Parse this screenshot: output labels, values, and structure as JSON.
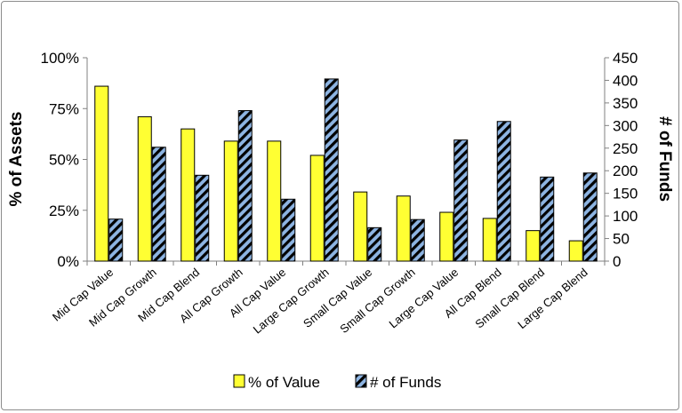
{
  "chart_data": {
    "type": "bar",
    "categories": [
      "Mid Cap Value",
      "Mid Cap Growth",
      "Mid Cap Blend",
      "All Cap Growth",
      "All Cap Value",
      "Large Cap Growth",
      "Small Cap Value",
      "Small Cap Growth",
      "Large Cap Value",
      "All Cap Blend",
      "Small Cap Blend",
      "Large Cap Blend"
    ],
    "series": [
      {
        "name": "% of Value",
        "axis": "left",
        "color": "#ffff33",
        "values": [
          86,
          71,
          65,
          59,
          59,
          52,
          34,
          32,
          24,
          21,
          15,
          10
        ]
      },
      {
        "name": "# of Funds",
        "axis": "right",
        "color": "#8db4e2",
        "pattern": "diagonal-stripes",
        "values": [
          93,
          252,
          190,
          333,
          137,
          403,
          74,
          92,
          268,
          309,
          186,
          195
        ]
      }
    ],
    "ylabel_left": "% of Assets",
    "ylabel_right": "# of Funds",
    "ylim_left": [
      0,
      100
    ],
    "ylim_right": [
      0,
      450
    ],
    "yticks_left": [
      "0%",
      "25%",
      "50%",
      "75%",
      "100%"
    ],
    "yticks_right": [
      "0",
      "50",
      "100",
      "150",
      "200",
      "250",
      "300",
      "350",
      "400",
      "450"
    ],
    "legend_position": "bottom",
    "grid": false
  }
}
